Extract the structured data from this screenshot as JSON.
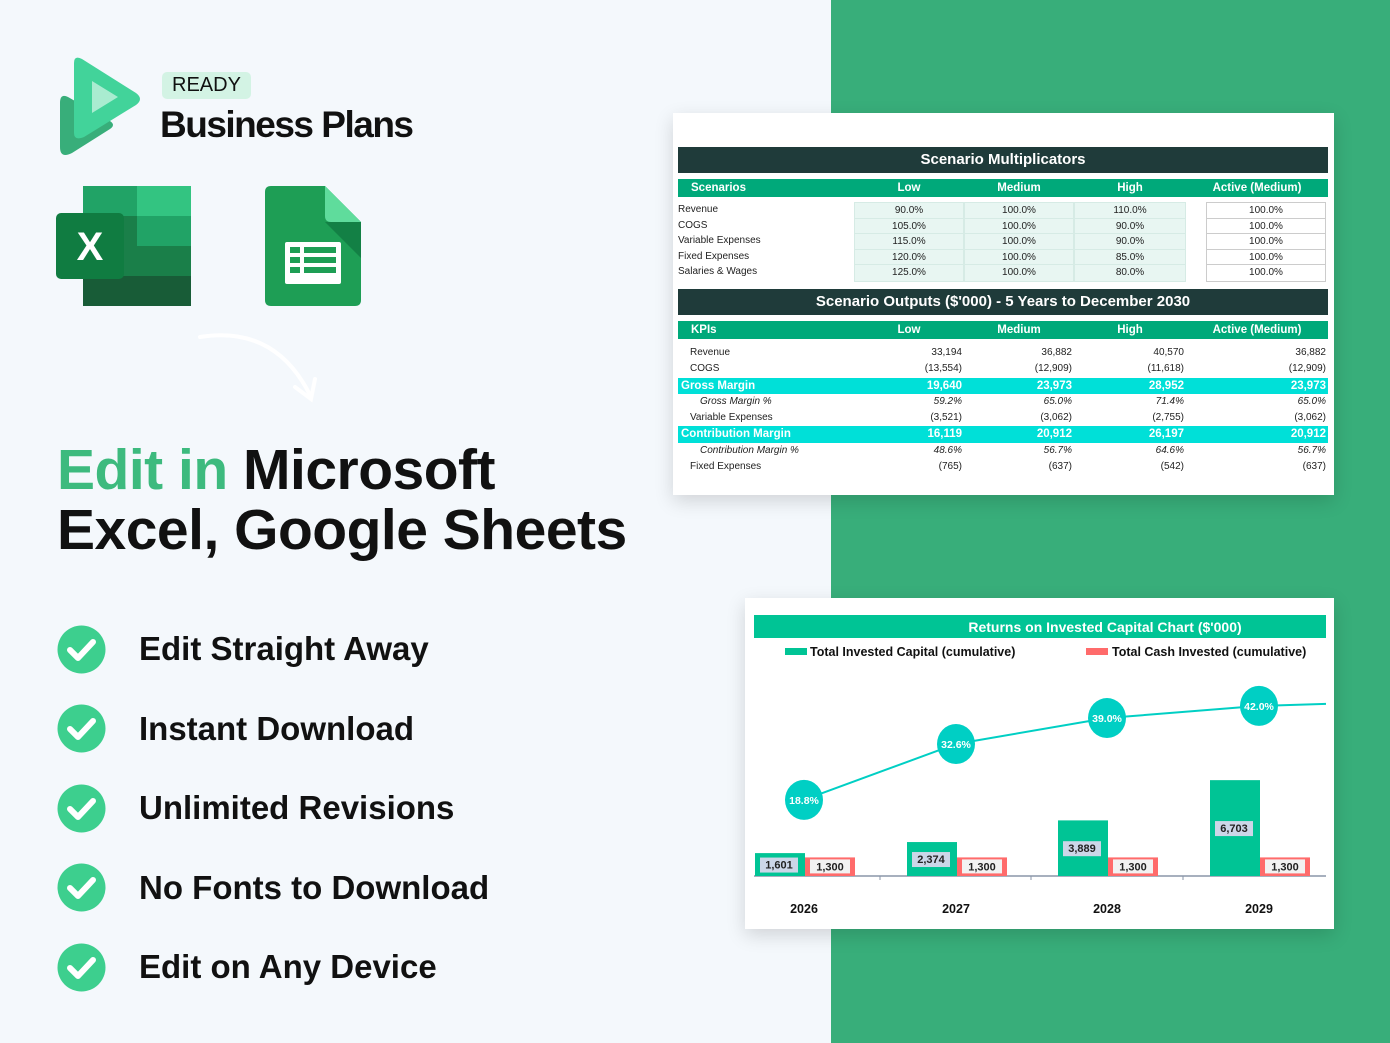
{
  "brand": {
    "badge": "READY",
    "name": "Business Plans"
  },
  "headline": {
    "highlight": "Edit in",
    "rest_line1": "Microsoft",
    "line2": "Excel, Google Sheets"
  },
  "features": [
    "Edit Straight Away",
    "Instant Download",
    "Unlimited Revisions",
    "No Fonts to Download",
    "Edit on Any Device"
  ],
  "colors": {
    "accent": "#3dba7e",
    "panel": "#38ae7a",
    "header_dark": "#1f3b3a",
    "header_green": "#00a97a",
    "highlight_row": "#00e0d8",
    "bar_green": "#00c495",
    "bar_red": "#ff6b6b",
    "line": "#00cfc4"
  },
  "icons": [
    "ready-business-plans-logo",
    "excel-icon",
    "google-sheets-icon",
    "curved-arrow-icon",
    "check-circle-icon"
  ],
  "multiplicators": {
    "title": "Scenario Multiplicators",
    "headers": [
      "Scenarios",
      "Low",
      "Medium",
      "High",
      "Active (Medium)"
    ],
    "rows": [
      [
        "Revenue",
        "90.0%",
        "100.0%",
        "110.0%",
        "100.0%"
      ],
      [
        "COGS",
        "105.0%",
        "100.0%",
        "90.0%",
        "100.0%"
      ],
      [
        "Variable Expenses",
        "115.0%",
        "100.0%",
        "90.0%",
        "100.0%"
      ],
      [
        "Fixed Expenses",
        "120.0%",
        "100.0%",
        "85.0%",
        "100.0%"
      ],
      [
        "Salaries & Wages",
        "125.0%",
        "100.0%",
        "80.0%",
        "100.0%"
      ]
    ]
  },
  "outputs": {
    "title": "Scenario Outputs ($'000) - 5 Years to December 2030",
    "headers": [
      "KPIs",
      "Low",
      "Medium",
      "High",
      "Active (Medium)"
    ],
    "rows": [
      {
        "style": "",
        "cells": [
          "Revenue",
          "33,194",
          "36,882",
          "40,570",
          "36,882"
        ]
      },
      {
        "style": "",
        "cells": [
          "COGS",
          "(13,554)",
          "(12,909)",
          "(11,618)",
          "(12,909)"
        ]
      },
      {
        "style": "hi",
        "cells": [
          "Gross Margin",
          "19,640",
          "23,973",
          "28,952",
          "23,973"
        ]
      },
      {
        "style": "it",
        "cells": [
          "Gross Margin %",
          "59.2%",
          "65.0%",
          "71.4%",
          "65.0%"
        ]
      },
      {
        "style": "",
        "cells": [
          "Variable Expenses",
          "(3,521)",
          "(3,062)",
          "(2,755)",
          "(3,062)"
        ]
      },
      {
        "style": "hi",
        "cells": [
          "Contribution Margin",
          "16,119",
          "20,912",
          "26,197",
          "20,912"
        ]
      },
      {
        "style": "it",
        "cells": [
          "Contribution Margin %",
          "48.6%",
          "56.7%",
          "64.6%",
          "56.7%"
        ]
      },
      {
        "style": "",
        "cells": [
          "Fixed Expenses",
          "(765)",
          "(637)",
          "(542)",
          "(637)"
        ]
      }
    ]
  },
  "chart_data": {
    "type": "bar",
    "title": "Returns on Invested Capital Chart ($'000)",
    "categories": [
      "2026",
      "2027",
      "2028",
      "2029"
    ],
    "series": [
      {
        "name": "Total Invested Capital (cumulative)",
        "type": "bar",
        "values": [
          1601,
          2374,
          3889,
          6703
        ],
        "labels": [
          "1,601",
          "2,374",
          "3,889",
          "6,703"
        ]
      },
      {
        "name": "Total Cash Invested (cumulative)",
        "type": "bar",
        "values": [
          1300,
          1300,
          1300,
          1300
        ],
        "labels": [
          "1,300",
          "1,300",
          "1,300",
          "1,300"
        ]
      },
      {
        "type": "line",
        "values": [
          18.8,
          32.6,
          39.0,
          42.0
        ],
        "labels": [
          "18.8%",
          "32.6%",
          "39.0%",
          "42.0%"
        ]
      }
    ],
    "legend": "top",
    "grid": false
  }
}
